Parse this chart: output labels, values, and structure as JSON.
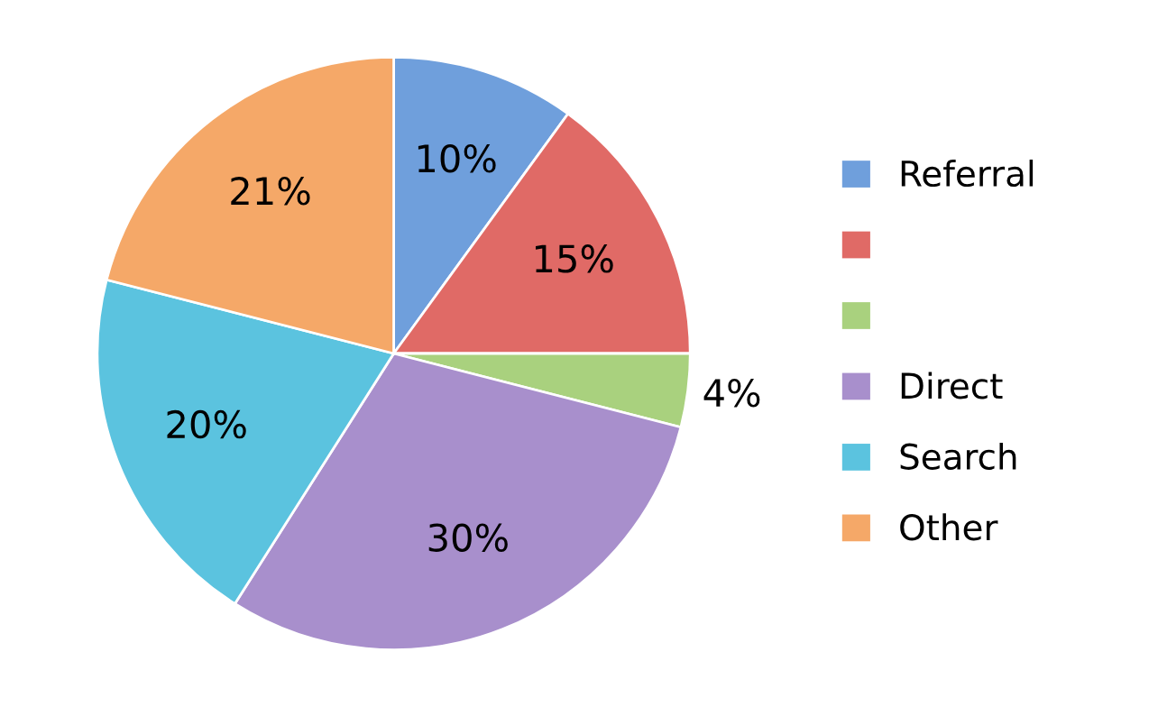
{
  "chart_data": {
    "type": "pie",
    "categories": [
      "Referral",
      null,
      null,
      "Direct",
      "Search",
      "Other"
    ],
    "values": [
      10,
      15,
      4,
      30,
      20,
      21
    ],
    "value_labels": [
      "10%",
      "15%",
      "4%",
      "30%",
      "20%",
      "21%"
    ],
    "colors": [
      "#6f9fdc",
      "#e06a66",
      "#a9d17e",
      "#a88fcc",
      "#5bc3df",
      "#f5a868"
    ],
    "legend": "right"
  }
}
